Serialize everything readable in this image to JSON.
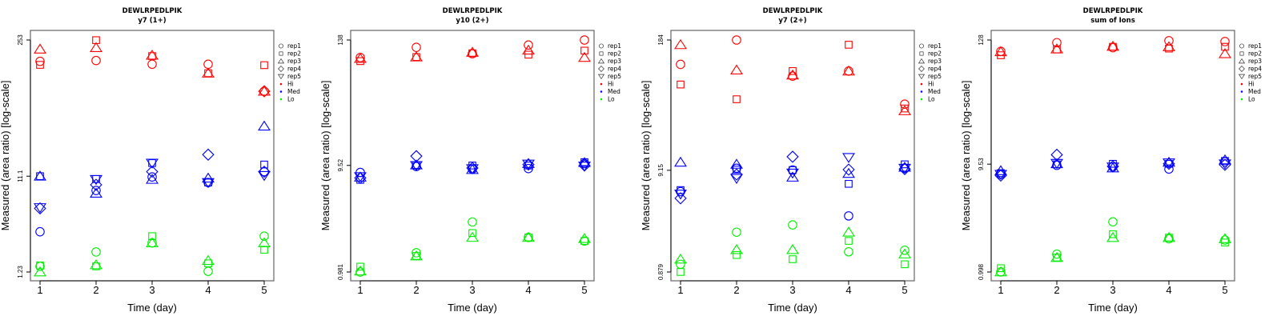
{
  "legend": {
    "position": "right",
    "entries": [
      {
        "label": "rep1",
        "shape": "circle",
        "color": "#000000"
      },
      {
        "label": "rep2",
        "shape": "square",
        "color": "#000000"
      },
      {
        "label": "rep3",
        "shape": "triangle-up",
        "color": "#000000"
      },
      {
        "label": "rep4",
        "shape": "diamond",
        "color": "#000000"
      },
      {
        "label": "rep5",
        "shape": "triangle-down",
        "color": "#000000"
      },
      {
        "label": "Hi",
        "shape": "dot",
        "color": "#ff0000"
      },
      {
        "label": "Med",
        "shape": "dot",
        "color": "#0000ff"
      },
      {
        "label": "Lo",
        "shape": "dot",
        "color": "#00ee00"
      }
    ]
  },
  "colors": {
    "Hi": "#ff0000",
    "Med": "#0000ff",
    "Lo": "#00ee00"
  },
  "chart_data": [
    {
      "type": "scatter",
      "title": "DEWLRPEDLPIK",
      "subtitle": "y7 (1+)",
      "xlabel": "Time (day)",
      "ylabel": "Measured (area ratio) [log-scale]",
      "yscale": "log",
      "xlim": [
        0.83,
        5.17
      ],
      "ylim": [
        0.96,
        300
      ],
      "xticks": [
        1,
        2,
        3,
        4,
        5
      ],
      "yticks": [
        1.23,
        11.1,
        253
      ],
      "ytick_labels": [
        "1.23",
        "11.1",
        "253"
      ],
      "series": [
        {
          "level": "Hi",
          "rep": "rep1",
          "x": [
            1,
            2,
            3,
            4,
            5
          ],
          "y": [
            155,
            158,
            145,
            145,
            78
          ]
        },
        {
          "level": "Hi",
          "rep": "rep2",
          "x": [
            1,
            2,
            3,
            4,
            5
          ],
          "y": [
            143,
            252,
            175,
            118,
            142
          ]
        },
        {
          "level": "Hi",
          "rep": "rep3",
          "x": [
            1,
            2,
            3,
            4,
            5
          ],
          "y": [
            205,
            212,
            178,
            118,
            78
          ]
        },
        {
          "level": "Hi",
          "rep": "rep4",
          "x": [
            1,
            2,
            3,
            4,
            5
          ],
          "y": [
            null,
            null,
            null,
            null,
            78
          ]
        },
        {
          "level": "Med",
          "rep": "rep1",
          "x": [
            1,
            2,
            3,
            4,
            5
          ],
          "y": [
            3.1,
            8.0,
            10.9,
            9.6,
            12.3
          ]
        },
        {
          "level": "Med",
          "rep": "rep2",
          "x": [
            1,
            2,
            3,
            4,
            5
          ],
          "y": [
            11.1,
            10.4,
            15.0,
            9.6,
            14.5
          ]
        },
        {
          "level": "Med",
          "rep": "rep3",
          "x": [
            1,
            2,
            3,
            4,
            5
          ],
          "y": [
            11.1,
            7.5,
            10.3,
            10.6,
            35
          ]
        },
        {
          "level": "Med",
          "rep": "rep4",
          "x": [
            1,
            2,
            3,
            4,
            5
          ],
          "y": [
            5.3,
            9.1,
            12.3,
            18.2,
            12.3
          ]
        },
        {
          "level": "Med",
          "rep": "rep5",
          "x": [
            1,
            2,
            3,
            4,
            5
          ],
          "y": [
            5.4,
            10.3,
            15.0,
            9.6,
            11.3
          ]
        },
        {
          "level": "Lo",
          "rep": "rep1",
          "x": [
            1,
            2,
            3,
            4,
            5
          ],
          "y": [
            1.4,
            1.95,
            2.4,
            1.25,
            2.8
          ]
        },
        {
          "level": "Lo",
          "rep": "rep2",
          "x": [
            1,
            2,
            3,
            4,
            5
          ],
          "y": [
            1.43,
            1.4,
            2.8,
            1.5,
            2.05
          ]
        },
        {
          "level": "Lo",
          "rep": "rep3",
          "x": [
            1,
            2,
            3,
            4,
            5
          ],
          "y": [
            1.23,
            1.45,
            2.4,
            1.6,
            2.4
          ]
        }
      ]
    },
    {
      "type": "scatter",
      "title": "DEWLRPEDLPIK",
      "subtitle": "y10 (2+)",
      "xlabel": "Time (day)",
      "ylabel": "Measured (area ratio) [log-scale]",
      "yscale": "log",
      "xlim": [
        0.83,
        5.17
      ],
      "ylim": [
        0.78,
        165
      ],
      "xticks": [
        1,
        2,
        3,
        4,
        5
      ],
      "yticks": [
        0.981,
        9.52,
        138
      ],
      "ytick_labels": [
        "0.981",
        "9.52",
        "138"
      ],
      "series": [
        {
          "level": "Hi",
          "rep": "rep1",
          "x": [
            1,
            2,
            3,
            4,
            5
          ],
          "y": [
            95,
            118,
            103,
            124,
            138
          ]
        },
        {
          "level": "Hi",
          "rep": "rep2",
          "x": [
            1,
            2,
            3,
            4,
            5
          ],
          "y": [
            88,
            96,
            104,
            101,
            110
          ]
        },
        {
          "level": "Hi",
          "rep": "rep3",
          "x": [
            1,
            2,
            3,
            4,
            5
          ],
          "y": [
            93,
            96,
            106,
            111,
            95
          ]
        },
        {
          "level": "Med",
          "rep": "rep1",
          "x": [
            1,
            2,
            3,
            4,
            5
          ],
          "y": [
            8.2,
            9.3,
            8.8,
            8.9,
            9.9
          ]
        },
        {
          "level": "Med",
          "rep": "rep2",
          "x": [
            1,
            2,
            3,
            4,
            5
          ],
          "y": [
            7.0,
            9.6,
            9.5,
            9.5,
            10.2
          ]
        },
        {
          "level": "Med",
          "rep": "rep3",
          "x": [
            1,
            2,
            3,
            4,
            5
          ],
          "y": [
            7.4,
            9.6,
            8.7,
            9.9,
            10.1
          ]
        },
        {
          "level": "Med",
          "rep": "rep4",
          "x": [
            1,
            2,
            3,
            4,
            5
          ],
          "y": [
            7.3,
            11.6,
            9.0,
            9.7,
            9.5
          ]
        },
        {
          "level": "Med",
          "rep": "rep5",
          "x": [
            1,
            2,
            3,
            4,
            5
          ],
          "y": [
            7.5,
            9.5,
            8.9,
            9.8,
            9.4
          ]
        },
        {
          "level": "Lo",
          "rep": "rep1",
          "x": [
            1,
            2,
            3,
            4,
            5
          ],
          "y": [
            0.98,
            1.48,
            2.85,
            2.05,
            1.9
          ]
        },
        {
          "level": "Lo",
          "rep": "rep2",
          "x": [
            1,
            2,
            3,
            4,
            5
          ],
          "y": [
            1.1,
            1.38,
            2.25,
            2.05,
            1.9
          ]
        },
        {
          "level": "Lo",
          "rep": "rep3",
          "x": [
            1,
            2,
            3,
            4,
            5
          ],
          "y": [
            1.0,
            1.38,
            2.05,
            2.05,
            2.0
          ]
        }
      ]
    },
    {
      "type": "scatter",
      "title": "DEWLRPEDLPIK",
      "subtitle": "y7 (2+)",
      "xlabel": "Time (day)",
      "ylabel": "Measured (area ratio) [log-scale]",
      "yscale": "log",
      "xlim": [
        0.83,
        5.17
      ],
      "ylim": [
        0.7,
        220
      ],
      "xticks": [
        1,
        2,
        3,
        4,
        5
      ],
      "yticks": [
        0.879,
        9.15,
        184
      ],
      "ytick_labels": [
        "0.879",
        "9.15",
        "184"
      ],
      "series": [
        {
          "level": "Hi",
          "rep": "rep1",
          "x": [
            1,
            2,
            3,
            4,
            5
          ],
          "y": [
            105,
            184,
            80,
            90,
            42
          ]
        },
        {
          "level": "Hi",
          "rep": "rep2",
          "x": [
            1,
            2,
            3,
            4,
            5
          ],
          "y": [
            66,
            47,
            90,
            165,
            38
          ]
        },
        {
          "level": "Hi",
          "rep": "rep3",
          "x": [
            1,
            2,
            3,
            4,
            5
          ],
          "y": [
            165,
            92,
            82,
            90,
            36
          ]
        },
        {
          "level": "Med",
          "rep": "rep1",
          "x": [
            1,
            2,
            3,
            4,
            5
          ],
          "y": [
            5.6,
            9.6,
            9.2,
            3.2,
            9.6
          ]
        },
        {
          "level": "Med",
          "rep": "rep2",
          "x": [
            1,
            2,
            3,
            4,
            5
          ],
          "y": [
            5.8,
            9.3,
            9.2,
            6.7,
            10.5
          ]
        },
        {
          "level": "Med",
          "rep": "rep3",
          "x": [
            1,
            2,
            3,
            4,
            5
          ],
          "y": [
            11.0,
            10.5,
            7.8,
            8.5,
            9.8
          ]
        },
        {
          "level": "Med",
          "rep": "rep4",
          "x": [
            1,
            2,
            3,
            4,
            5
          ],
          "y": [
            4.8,
            8.3,
            12.5,
            9.3,
            9.4
          ]
        },
        {
          "level": "Med",
          "rep": "rep5",
          "x": [
            1,
            2,
            3,
            4,
            5
          ],
          "y": [
            5.3,
            7.6,
            8.6,
            12.3,
            9.6
          ]
        },
        {
          "level": "Lo",
          "rep": "rep1",
          "x": [
            1,
            2,
            3,
            4,
            5
          ],
          "y": [
            1.05,
            2.2,
            2.6,
            1.4,
            1.45
          ]
        },
        {
          "level": "Lo",
          "rep": "rep2",
          "x": [
            1,
            2,
            3,
            4,
            5
          ],
          "y": [
            0.88,
            1.3,
            1.18,
            1.8,
            1.05
          ]
        },
        {
          "level": "Lo",
          "rep": "rep3",
          "x": [
            1,
            2,
            3,
            4,
            5
          ],
          "y": [
            1.18,
            1.47,
            1.47,
            2.2,
            1.33
          ]
        }
      ]
    },
    {
      "type": "scatter",
      "title": "DEWLRPEDLPIK",
      "subtitle": "sum of Ions",
      "xlabel": "Time (day)",
      "ylabel": "Measured (area ratio) [log-scale]",
      "yscale": "log",
      "xlim": [
        0.83,
        5.17
      ],
      "ylim": [
        0.8,
        155
      ],
      "xticks": [
        1,
        2,
        3,
        4,
        5
      ],
      "yticks": [
        0.998,
        9.53,
        128
      ],
      "ytick_labels": [
        "0.998",
        "9.53",
        "128"
      ],
      "series": [
        {
          "level": "Hi",
          "rep": "rep1",
          "x": [
            1,
            2,
            3,
            4,
            5
          ],
          "y": [
            101,
            121,
            109,
            126,
            124
          ]
        },
        {
          "level": "Hi",
          "rep": "rep2",
          "x": [
            1,
            2,
            3,
            4,
            5
          ],
          "y": [
            93,
            105,
            111,
            107,
            111
          ]
        },
        {
          "level": "Hi",
          "rep": "rep3",
          "x": [
            1,
            2,
            3,
            4,
            5
          ],
          "y": [
            100,
            106,
            112,
            111,
            96
          ]
        },
        {
          "level": "Med",
          "rep": "rep1",
          "x": [
            1,
            2,
            3,
            4,
            5
          ],
          "y": [
            7.7,
            9.3,
            9.0,
            8.6,
            10.0
          ]
        },
        {
          "level": "Med",
          "rep": "rep2",
          "x": [
            1,
            2,
            3,
            4,
            5
          ],
          "y": [
            7.9,
            9.5,
            9.6,
            9.6,
            10.2
          ]
        },
        {
          "level": "Med",
          "rep": "rep3",
          "x": [
            1,
            2,
            3,
            4,
            5
          ],
          "y": [
            8.3,
            9.6,
            8.8,
            9.9,
            10.4
          ]
        },
        {
          "level": "Med",
          "rep": "rep4",
          "x": [
            1,
            2,
            3,
            4,
            5
          ],
          "y": [
            7.5,
            11.6,
            9.1,
            9.6,
            9.4
          ]
        },
        {
          "level": "Med",
          "rep": "rep5",
          "x": [
            1,
            2,
            3,
            4,
            5
          ],
          "y": [
            7.7,
            9.7,
            9.0,
            9.8,
            9.6
          ]
        },
        {
          "level": "Lo",
          "rep": "rep1",
          "x": [
            1,
            2,
            3,
            4,
            5
          ],
          "y": [
            1.0,
            1.45,
            2.85,
            2.0,
            1.95
          ]
        },
        {
          "level": "Lo",
          "rep": "rep2",
          "x": [
            1,
            2,
            3,
            4,
            5
          ],
          "y": [
            1.08,
            1.35,
            2.2,
            2.05,
            1.85
          ]
        },
        {
          "level": "Lo",
          "rep": "rep3",
          "x": [
            1,
            2,
            3,
            4,
            5
          ],
          "y": [
            1.0,
            1.35,
            2.05,
            2.05,
            2.0
          ]
        }
      ]
    }
  ]
}
